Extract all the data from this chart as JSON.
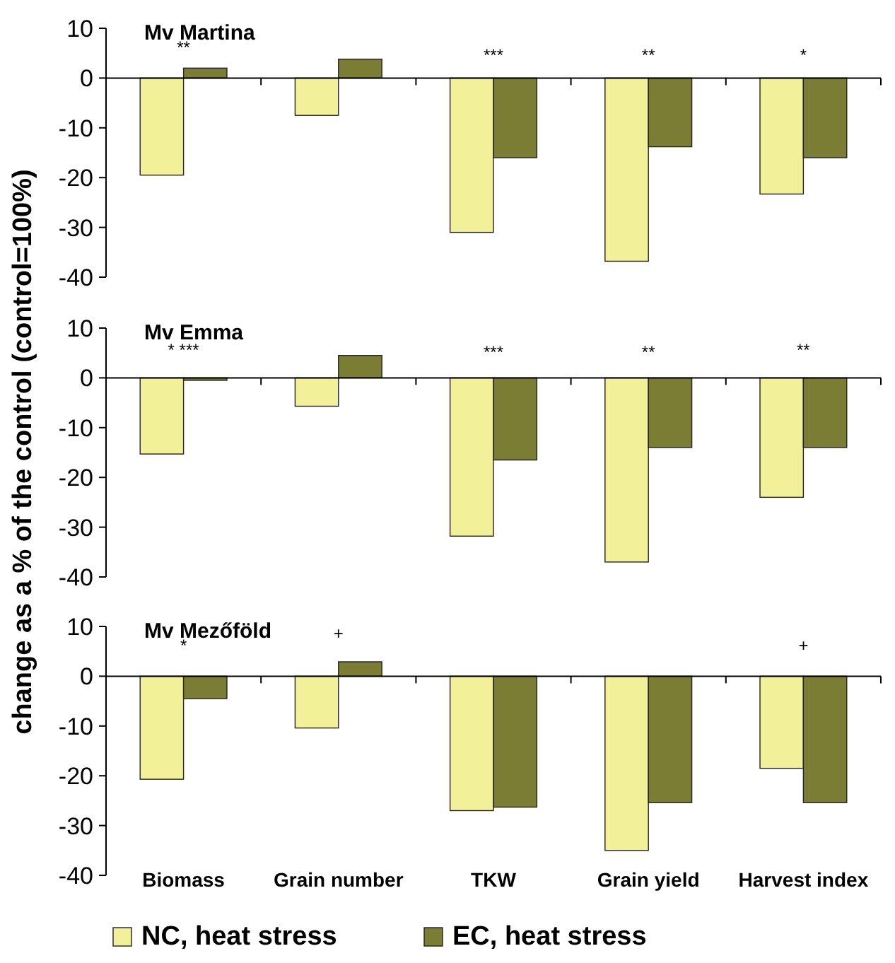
{
  "chart_data": [
    {
      "type": "bar",
      "title": "Mv Martina",
      "categories": [
        null,
        null,
        null,
        null,
        null
      ],
      "series": [
        {
          "color": "#f3f09a",
          "values": [
            -19.5,
            -7.5,
            -31,
            -36.8,
            -23.3
          ]
        },
        {
          "color": "#7a7d33",
          "values": [
            2,
            3.8,
            -16,
            -13.8,
            -16
          ]
        }
      ],
      "ylim": [
        -40,
        10
      ],
      "yticks": [
        -40,
        -30,
        -20,
        -10,
        0,
        10
      ],
      "tick_labels": "y",
      "legend": false,
      "annotations": [
        "**",
        "***",
        "**",
        "*"
      ]
    },
    {
      "type": "bar",
      "title": "Mv Emma",
      "ylabel": "change as a % of the control (control=100%)",
      "categories": [
        null,
        null,
        null,
        null,
        null
      ],
      "series": [
        {
          "color": "#f3f09a",
          "values": [
            -15.3,
            -5.7,
            -31.8,
            -37,
            -24
          ]
        },
        {
          "color": "#7a7d33",
          "values": [
            -0.5,
            4.5,
            -16.5,
            -14,
            -14
          ]
        }
      ],
      "ylim": [
        -40,
        10
      ],
      "yticks": [
        -40,
        -30,
        -20,
        -10,
        0,
        10
      ],
      "tick_labels": "y",
      "legend": false,
      "annotations": [
        "* ***",
        "***",
        "**",
        "**"
      ]
    },
    {
      "type": "bar",
      "title": "Mv Mezőföld",
      "categories": [
        "Biomass",
        "Grain number",
        "TKW",
        "Grain yield",
        "Harvest index"
      ],
      "series": [
        {
          "name": "NC, heat stress",
          "color": "#f3f09a",
          "values": [
            -20.7,
            -10.4,
            -27,
            -35,
            -18.5
          ]
        },
        {
          "name": "EC, heat stress",
          "color": "#7a7d33",
          "values": [
            -4.5,
            2.9,
            -26.3,
            -25.4,
            -25.4
          ]
        }
      ],
      "ylim": [
        -40,
        10
      ],
      "yticks": [
        -40,
        -30,
        -20,
        -10,
        0,
        10
      ],
      "legend": "bottom",
      "annotations": [
        "*",
        "+",
        "+"
      ]
    }
  ]
}
